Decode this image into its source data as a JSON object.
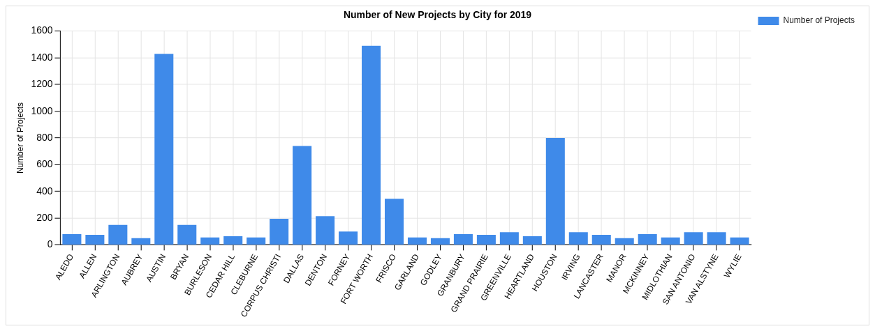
{
  "chart_data": {
    "type": "bar",
    "title": "Number of New Projects by City for 2019",
    "ylabel": "Number of Projects",
    "categories": [
      "ALEDO",
      "ALLEN",
      "ARLINGTON",
      "AUBREY",
      "AUSTIN",
      "BRYAN",
      "BURLESON",
      "CEDAR HILL",
      "CLEBURNE",
      "CORPUS CHRISTI",
      "DALLAS",
      "DENTON",
      "FORNEY",
      "FORT WORTH",
      "FRISCO",
      "GARLAND",
      "GODLEY",
      "GRANBURY",
      "GRAND PRAIRIE",
      "GREENVILLE",
      "HEARTLAND",
      "HOUSTON",
      "IRVING",
      "LANCASTER",
      "MANOR",
      "MCKINNEY",
      "MIDLOTHIAN",
      "SAN ANTONIO",
      "VAN ALSTYNE",
      "WYLIE"
    ],
    "series": [
      {
        "name": "Number of Projects",
        "color": "#3f8ae9",
        "values": [
          80,
          75,
          150,
          50,
          1430,
          150,
          55,
          65,
          55,
          195,
          740,
          215,
          100,
          1490,
          345,
          55,
          50,
          80,
          75,
          95,
          65,
          800,
          95,
          75,
          50,
          80,
          55,
          95,
          95,
          55
        ]
      }
    ],
    "ylim": [
      0,
      1600
    ],
    "yticks": [
      0,
      200,
      400,
      600,
      800,
      1000,
      1200,
      1400,
      1600
    ],
    "grid": true,
    "legend": "top right"
  }
}
